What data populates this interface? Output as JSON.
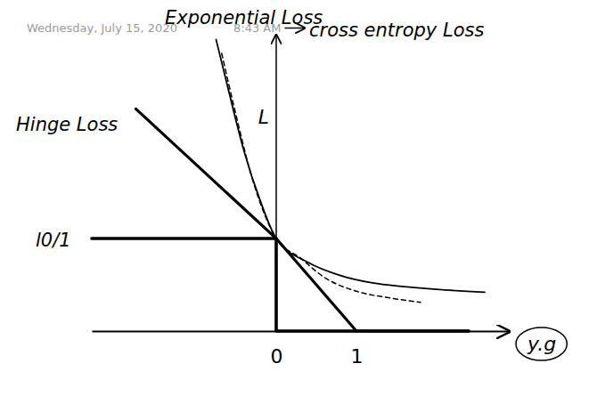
{
  "chart_data": {
    "type": "line",
    "annotations": [
      "Wednesday, July 15, 2020",
      "8:43 AM"
    ],
    "xlabel": "y.g",
    "ylabel": "L",
    "xlim": [
      -2.3,
      2.9
    ],
    "ylim": [
      0,
      3.2
    ],
    "xticks": [
      0,
      1
    ],
    "yticks": [],
    "tick_labels": "x",
    "grid": false,
    "series": [
      {
        "name": "Exponential Loss",
        "color": "#000000",
        "line_style": "solid",
        "x": [
          -0.75,
          -0.6,
          -0.4,
          -0.2,
          0,
          0.4,
          0.8,
          1.2,
          1.6,
          2.0,
          2.6
        ],
        "values": [
          3.15,
          2.62,
          1.94,
          1.41,
          1.0,
          0.74,
          0.6,
          0.52,
          0.48,
          0.45,
          0.42
        ]
      },
      {
        "name": "cross entropy Loss",
        "color": "#000000",
        "line_style": "dashed",
        "x": [
          -0.68,
          -0.5,
          -0.3,
          -0.15,
          0,
          0.3,
          0.6,
          1.0,
          1.4,
          1.8
        ],
        "values": [
          3.0,
          2.33,
          1.65,
          1.27,
          1.0,
          0.79,
          0.58,
          0.43,
          0.36,
          0.31
        ]
      },
      {
        "name": "Hinge Loss",
        "color": "#000000",
        "line_style": "solid",
        "x": [
          -1.75,
          0,
          1,
          2.4
        ],
        "values": [
          2.4,
          1.0,
          0,
          0
        ]
      },
      {
        "name": "l0/1",
        "color": "#000000",
        "line_style": "solid",
        "x": [
          -2.3,
          0,
          0,
          2.4
        ],
        "values": [
          1,
          1,
          0,
          0
        ]
      }
    ]
  }
}
